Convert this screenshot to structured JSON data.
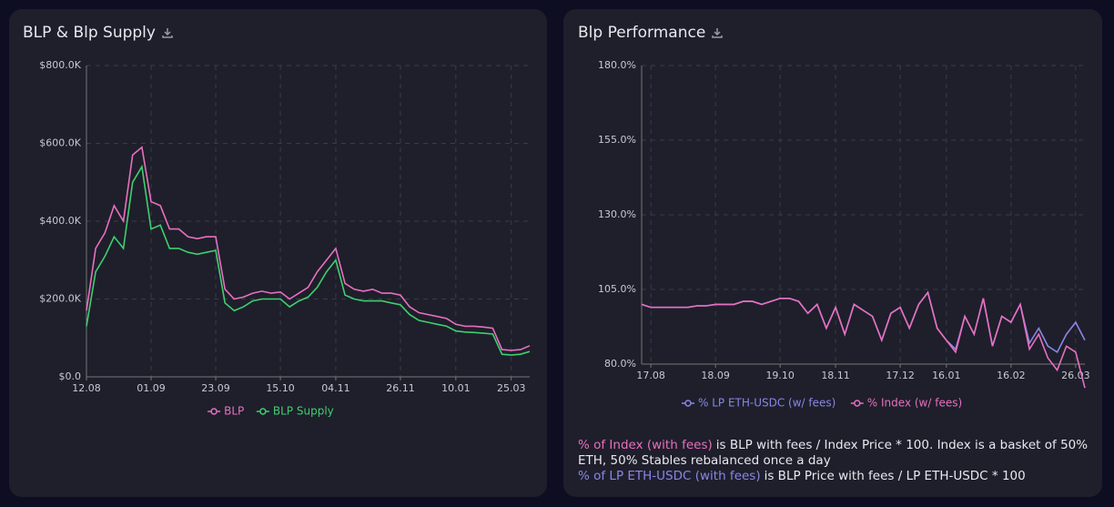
{
  "chart_data": [
    {
      "type": "line",
      "title": "BLP & Blp Supply",
      "categories": [
        "12.08",
        null,
        null,
        null,
        null,
        null,
        null,
        "01.09",
        null,
        null,
        null,
        null,
        null,
        null,
        "23.09",
        null,
        null,
        null,
        null,
        null,
        null,
        "15.10",
        null,
        null,
        null,
        null,
        null,
        "04.11",
        null,
        null,
        null,
        null,
        null,
        null,
        "26.11",
        null,
        null,
        null,
        null,
        null,
        "10.01",
        null,
        null,
        null,
        null,
        null,
        "25.03",
        null,
        null
      ],
      "series": [
        {
          "name": "BLP",
          "color": "#e86fbf",
          "values": [
            170000,
            330000,
            370000,
            440000,
            400000,
            570000,
            590000,
            450000,
            440000,
            380000,
            380000,
            360000,
            355000,
            360000,
            360000,
            225000,
            200000,
            205000,
            215000,
            220000,
            215000,
            218000,
            200000,
            215000,
            230000,
            270000,
            300000,
            330000,
            240000,
            225000,
            220000,
            225000,
            215000,
            215000,
            210000,
            180000,
            165000,
            160000,
            155000,
            150000,
            135000,
            130000,
            130000,
            128000,
            125000,
            70000,
            68000,
            70000,
            80000
          ]
        },
        {
          "name": "BLP Supply",
          "color": "#3fcf6e",
          "values": [
            130000,
            270000,
            310000,
            360000,
            330000,
            500000,
            540000,
            380000,
            390000,
            330000,
            330000,
            320000,
            315000,
            320000,
            325000,
            190000,
            170000,
            180000,
            195000,
            200000,
            200000,
            200000,
            180000,
            195000,
            205000,
            230000,
            270000,
            300000,
            210000,
            200000,
            195000,
            195000,
            195000,
            190000,
            185000,
            160000,
            145000,
            140000,
            135000,
            130000,
            118000,
            115000,
            114000,
            112000,
            110000,
            58000,
            56000,
            58000,
            65000
          ]
        }
      ],
      "ylim": [
        0,
        800000
      ],
      "yticks": [
        {
          "value": 0,
          "label": "$0.0"
        },
        {
          "value": 200000,
          "label": "$200.0K"
        },
        {
          "value": 400000,
          "label": "$400.0K"
        },
        {
          "value": 600000,
          "label": "$600.0K"
        },
        {
          "value": 800000,
          "label": "$800.0K"
        }
      ],
      "grid": true,
      "legend": "bottom"
    },
    {
      "type": "line",
      "title": "Blp Performance",
      "categories": [
        null,
        "17.08",
        null,
        null,
        null,
        null,
        null,
        null,
        "18.09",
        null,
        null,
        null,
        null,
        null,
        null,
        "19.10",
        null,
        null,
        null,
        null,
        null,
        "18.11",
        null,
        null,
        null,
        null,
        null,
        null,
        "17.12",
        null,
        null,
        null,
        null,
        "16.01",
        null,
        null,
        null,
        null,
        null,
        null,
        "16.02",
        null,
        null,
        null,
        null,
        null,
        null,
        "26.03",
        null
      ],
      "series": [
        {
          "name": "% LP ETH-USDC (w/ fees)",
          "color": "#8a86e6",
          "values": [
            100,
            99,
            99,
            99,
            99,
            99,
            99.5,
            99.5,
            100,
            100,
            100,
            101,
            101,
            100,
            101,
            102,
            102,
            101,
            97,
            100,
            92,
            99,
            90,
            100,
            98,
            96,
            88,
            97,
            99,
            92,
            100,
            104,
            92,
            88,
            85,
            96,
            90,
            102,
            86,
            96,
            94,
            100,
            87,
            92,
            86,
            84,
            90,
            94,
            88
          ]
        },
        {
          "name": "% Index (w/ fees)",
          "color": "#e86fbf",
          "values": [
            100,
            99,
            99,
            99,
            99,
            99,
            99.5,
            99.5,
            100,
            100,
            100,
            101,
            101,
            100,
            101,
            102,
            102,
            101,
            97,
            100,
            92,
            99,
            90,
            100,
            98,
            96,
            88,
            97,
            99,
            92,
            100,
            104,
            92,
            88,
            84,
            96,
            90,
            102,
            86,
            96,
            94,
            100,
            85,
            90,
            82,
            78,
            86,
            84,
            72
          ]
        }
      ],
      "ylim": [
        80,
        180
      ],
      "yticks": [
        {
          "value": 80,
          "label": "80.0%"
        },
        {
          "value": 105,
          "label": "105.0%"
        },
        {
          "value": 130,
          "label": "130.0%"
        },
        {
          "value": 155,
          "label": "155.0%"
        },
        {
          "value": 180,
          "label": "180.0%"
        }
      ],
      "grid": true,
      "legend": "bottom",
      "notes": [
        {
          "highlight": "% of Index (with fees)",
          "text": "is BLP with fees / Index Price * 100. Index is a basket of 50% ETH, 50% Stables rebalanced once a day"
        },
        {
          "highlight": "% of LP ETH-USDC (with fees)",
          "text": "is BLP Price with fees / LP ETH-USDC * 100"
        }
      ]
    }
  ]
}
